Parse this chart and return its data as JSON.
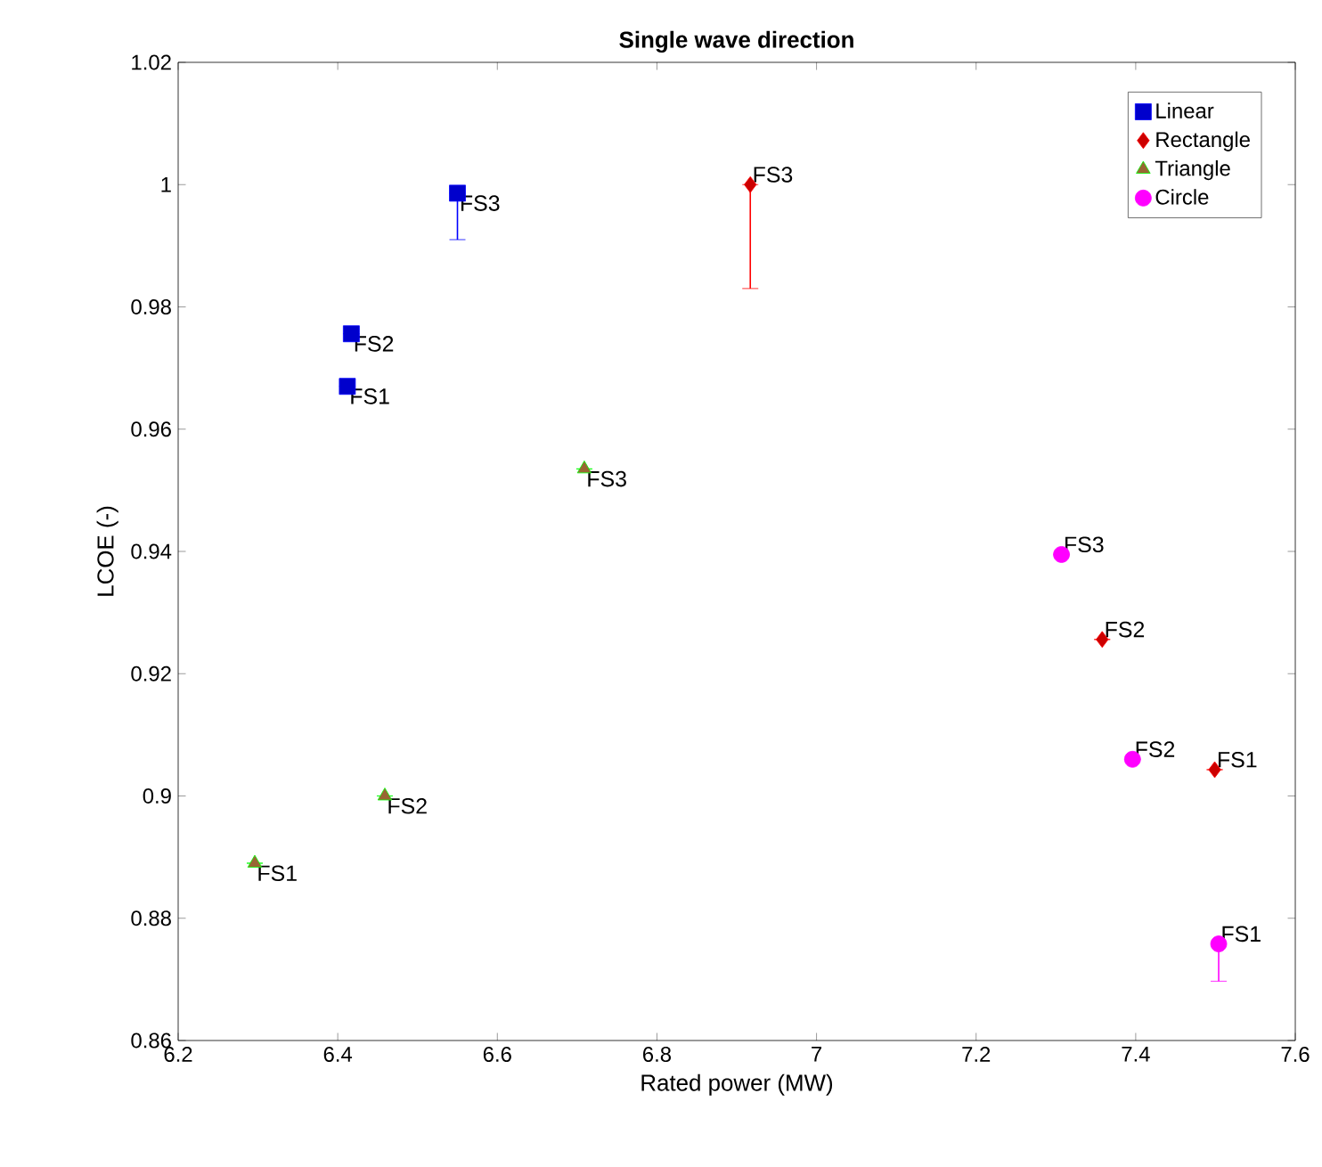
{
  "chart_data": {
    "type": "scatter",
    "title": "Single wave direction",
    "xlabel": "Rated power (MW)",
    "ylabel": "LCOE (-)",
    "xlim": [
      6.2,
      7.6
    ],
    "ylim": [
      0.86,
      1.02
    ],
    "xticks": [
      6.2,
      6.4,
      6.6,
      6.8,
      7,
      7.2,
      7.4,
      7.6
    ],
    "yticks": [
      0.86,
      0.88,
      0.9,
      0.92,
      0.94,
      0.96,
      0.98,
      1,
      1.02
    ],
    "legend": "top right",
    "grid": false,
    "series": [
      {
        "name": "Linear",
        "color": "#0000ff",
        "marker": "square",
        "x": [
          6.412,
          6.417,
          6.55
        ],
        "values": [
          0.967,
          0.9756,
          0.9986
        ],
        "errors": [
          null,
          null,
          [
            0.991,
            0.9986
          ]
        ],
        "value_labels": [
          "FS1",
          "FS2",
          "FS3"
        ]
      },
      {
        "name": "Rectangle",
        "color": "#ff0000",
        "marker": "diamond",
        "x": [
          7.499,
          7.358,
          6.917
        ],
        "values": [
          0.9043,
          0.9256,
          1.0
        ],
        "errors": [
          null,
          null,
          [
            0.983,
            1.0
          ]
        ],
        "value_labels": [
          "FS1",
          "FS2",
          "FS3"
        ]
      },
      {
        "name": "Triangle",
        "color": "#00ff00",
        "marker": "triangle",
        "x": [
          6.296,
          6.459,
          6.709
        ],
        "values": [
          0.889,
          0.9,
          0.9535
        ],
        "errors": [
          null,
          null,
          null
        ],
        "value_labels": [
          "FS1",
          "FS2",
          "FS3"
        ]
      },
      {
        "name": "Circle",
        "color": "#ff00ff",
        "marker": "circle",
        "x": [
          7.504,
          7.396,
          7.307
        ],
        "values": [
          0.8758,
          0.906,
          0.9395
        ],
        "errors": [
          [
            0.8697,
            0.8758
          ],
          null,
          null
        ],
        "value_labels": [
          "FS1",
          "FS2",
          "FS3"
        ]
      }
    ]
  }
}
